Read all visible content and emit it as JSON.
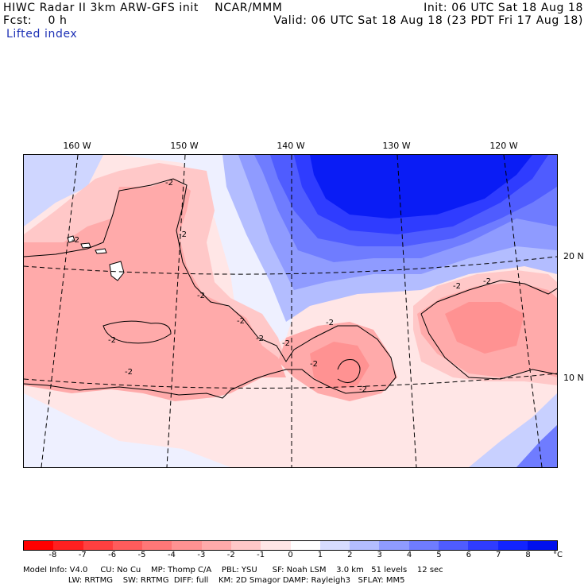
{
  "header": {
    "line1_left": "HIWC Radar II 3km ARW-GFS init    NCAR/MMM",
    "line1_right": "Init: 06 UTC Sat 18 Aug 18",
    "line2_left": "Fcst:    0 h",
    "line2_right": "Valid: 06 UTC Sat 18 Aug 18 (23 PDT Fri 17 Aug 18)",
    "field": "Lifted index"
  },
  "longitude_labels": [
    "160 W",
    "150 W",
    "140 W",
    "130 W",
    "120 W"
  ],
  "latitude_labels": [
    "20 N",
    "10 N"
  ],
  "contour_label": "-2",
  "colorbar": {
    "ticks": [
      "-8",
      "-7",
      "-6",
      "-5",
      "-4",
      "-3",
      "-2",
      "-1",
      "0",
      "1",
      "2",
      "3",
      "4",
      "5",
      "6",
      "7",
      "8"
    ],
    "unit": "°C",
    "colors": [
      "#ff0000",
      "#ff2020",
      "#ff4040",
      "#ff5c5c",
      "#ff7777",
      "#ff9292",
      "#ffaaaa",
      "#ffc8c8",
      "#ffe6e6",
      "#ffffff",
      "#d6dcff",
      "#b3bdff",
      "#8f9bff",
      "#6f7cff",
      "#4f5cff",
      "#2f3cff",
      "#1224ff",
      "#0010ee"
    ]
  },
  "model_info": {
    "line1": "Model Info: V4.0     CU: No Cu    MP: Thomp C/A    PBL: YSU      SF: Noah LSM    3.0 km   51 levels    12 sec",
    "line2": "                           LW: RRTMG    SW: RRTMG  DIFF: full    KM: 2D Smagor DAMP: Rayleigh3   SFLAY: MM5"
  }
}
